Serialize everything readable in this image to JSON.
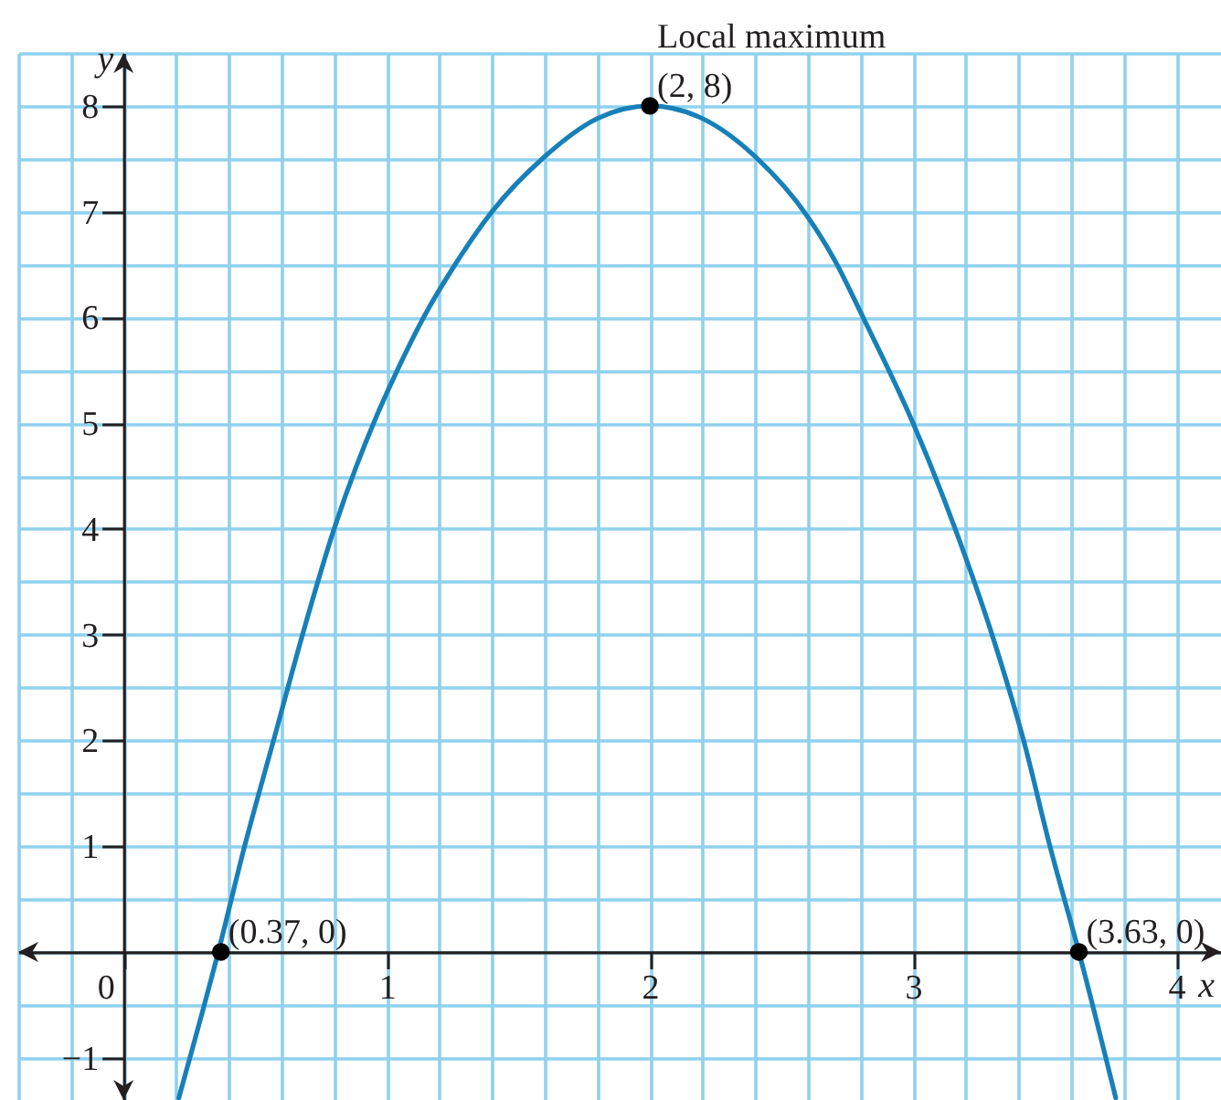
{
  "chart_data": {
    "type": "line",
    "xlabel": "x",
    "ylabel": "y",
    "xlim": [
      -0.4,
      4.17
    ],
    "ylim": [
      -1.4,
      8.5
    ],
    "xticks": [
      {
        "value": -0.4,
        "label": null
      },
      {
        "value": -0.2,
        "label": null
      },
      0,
      {
        "value": 0.2,
        "label": null
      },
      {
        "value": 0.4,
        "label": null
      },
      {
        "value": 0.6,
        "label": null
      },
      {
        "value": 0.8,
        "label": null
      },
      1,
      {
        "value": 1.2,
        "label": null
      },
      {
        "value": 1.4,
        "label": null
      },
      {
        "value": 1.6,
        "label": null
      },
      {
        "value": 1.8,
        "label": null
      },
      2,
      {
        "value": 2.2,
        "label": null
      },
      {
        "value": 2.4,
        "label": null
      },
      {
        "value": 2.6,
        "label": null
      },
      {
        "value": 2.8,
        "label": null
      },
      3,
      {
        "value": 3.2,
        "label": null
      },
      {
        "value": 3.4,
        "label": null
      },
      {
        "value": 3.6,
        "label": null
      },
      {
        "value": 3.8,
        "label": null
      },
      4
    ],
    "yticks": [
      -1,
      {
        "value": -0.5,
        "label": null
      },
      {
        "value": 0,
        "label": null
      },
      {
        "value": 0.5,
        "label": null
      },
      1,
      {
        "value": 1.5,
        "label": null
      },
      2,
      {
        "value": 2.5,
        "label": null
      },
      3,
      {
        "value": 3.5,
        "label": null
      },
      4,
      {
        "value": 4.5,
        "label": null
      },
      5,
      {
        "value": 5.5,
        "label": null
      },
      6,
      {
        "value": 6.5,
        "label": null
      },
      7,
      {
        "value": 7.5,
        "label": null
      },
      8,
      {
        "value": 8.5,
        "label": null
      }
    ],
    "grid": true,
    "series": [
      {
        "color": "#1880b8",
        "line_style": "solid",
        "x": [
          0.21,
          0.36,
          0.46,
          0.57,
          0.68,
          0.8,
          0.95,
          1.04,
          1.14,
          1.26,
          1.4,
          1.6,
          1.8,
          2,
          2.2,
          2.4,
          2.6,
          2.7,
          2.81,
          3.0,
          3.16,
          3.3,
          3.42,
          3.52,
          3.63,
          3.77
        ],
        "values": [
          -1.38,
          0,
          1,
          2,
          3,
          4,
          5,
          5.5,
          6,
          6.5,
          7,
          7.52,
          7.88,
          8,
          7.88,
          7.52,
          6.95,
          6.55,
          6,
          5,
          4,
          3,
          2,
          1,
          0,
          -1.38
        ]
      },
      {
        "type": "scatter",
        "color": "#000000",
        "marker": "circle",
        "x": [
          0.37,
          2,
          3.63
        ],
        "values": [
          0,
          8,
          0
        ]
      }
    ],
    "annotations": [
      {
        "text": "(2, 8)",
        "x": 2,
        "y": 8
      },
      {
        "text": "Local maximum",
        "x": 2,
        "y": 8
      },
      {
        "text": "(0.37, 0)",
        "x": 0.37,
        "y": 0
      },
      {
        "text": "(3.63, 0)",
        "x": 3.63,
        "y": 0
      }
    ]
  }
}
